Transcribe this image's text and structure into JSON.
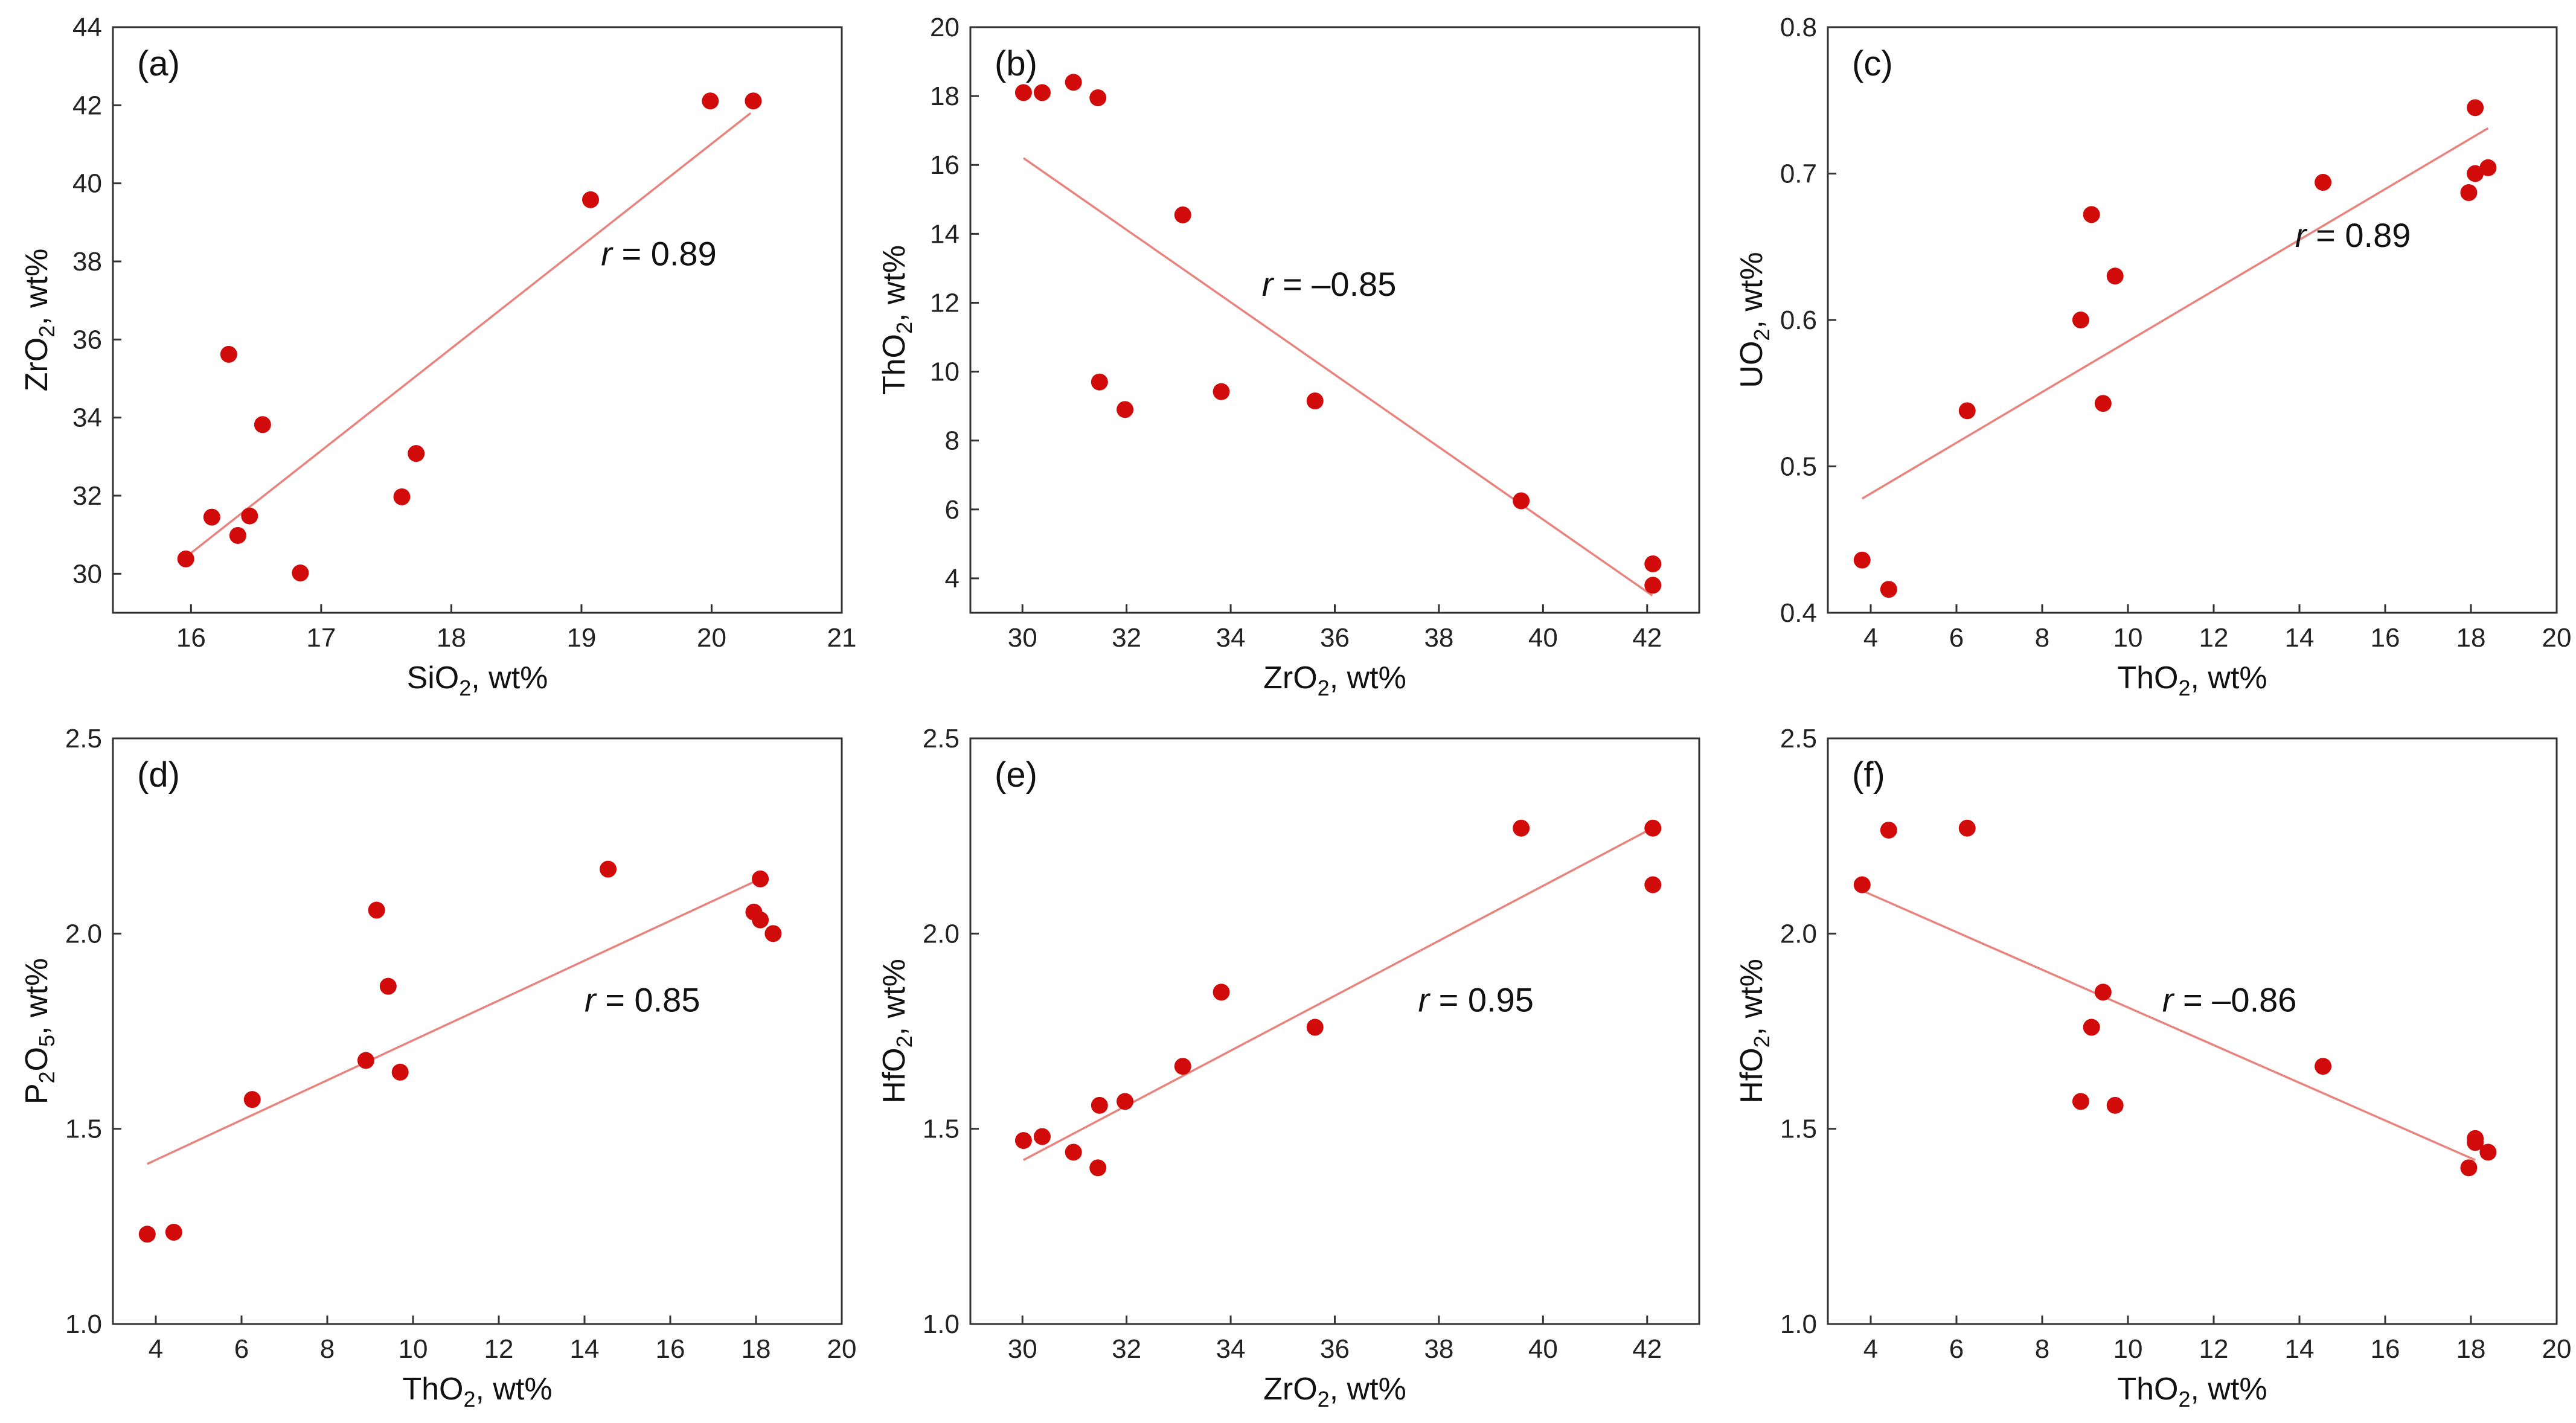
{
  "chart_data": [
    {
      "id": "a",
      "type": "scatter",
      "label": "(a)",
      "xlabel": {
        "base": "SiO",
        "sub": "2",
        "rest": ", wt%"
      },
      "ylabel": {
        "base": "ZrO",
        "sub": "2",
        "rest": ", wt%"
      },
      "xlim": [
        15.4,
        21
      ],
      "ylim": [
        29,
        44
      ],
      "xticks": [
        16,
        17,
        18,
        19,
        20,
        21
      ],
      "yticks": [
        30,
        32,
        34,
        36,
        38,
        40,
        42,
        44
      ],
      "tick_decimals": 0,
      "r_value": "= 0.89",
      "r_pos": [
        19.15,
        37.9
      ],
      "fit": [
        [
          15.95,
          30.4
        ],
        [
          20.3,
          41.8
        ]
      ],
      "points": [
        [
          15.96,
          30.38
        ],
        [
          16.16,
          31.45
        ],
        [
          16.29,
          35.62
        ],
        [
          16.36,
          30.98
        ],
        [
          16.45,
          31.48
        ],
        [
          16.55,
          33.82
        ],
        [
          16.84,
          30.02
        ],
        [
          17.62,
          31.97
        ],
        [
          17.73,
          33.08
        ],
        [
          19.07,
          39.58
        ],
        [
          19.99,
          42.11
        ],
        [
          20.32,
          42.11
        ]
      ]
    },
    {
      "id": "b",
      "type": "scatter",
      "label": "(b)",
      "xlabel": {
        "base": "ZrO",
        "sub": "2",
        "rest": ", wt%"
      },
      "ylabel": {
        "base": "ThO",
        "sub": "2",
        "rest": ", wt%"
      },
      "xlim": [
        29,
        43
      ],
      "ylim": [
        3,
        20
      ],
      "xticks": [
        30,
        32,
        34,
        36,
        38,
        40,
        42
      ],
      "yticks": [
        4,
        6,
        8,
        10,
        12,
        14,
        16,
        18,
        20
      ],
      "tick_decimals": 0,
      "r_value": "= –0.85",
      "r_pos": [
        34.6,
        12.2
      ],
      "fit": [
        [
          30.02,
          16.2
        ],
        [
          42.1,
          3.5
        ]
      ],
      "points": [
        [
          30.02,
          18.1
        ],
        [
          30.38,
          18.1
        ],
        [
          30.98,
          18.4
        ],
        [
          31.45,
          17.95
        ],
        [
          31.48,
          9.7
        ],
        [
          31.97,
          8.9
        ],
        [
          33.08,
          14.55
        ],
        [
          33.82,
          9.42
        ],
        [
          35.62,
          9.15
        ],
        [
          39.58,
          6.25
        ],
        [
          42.11,
          4.42
        ],
        [
          42.11,
          3.8
        ]
      ]
    },
    {
      "id": "c",
      "type": "scatter",
      "label": "(c)",
      "xlabel": {
        "base": "ThO",
        "sub": "2",
        "rest": ", wt%"
      },
      "ylabel": {
        "base": "UO",
        "sub": "2",
        "rest": ", wt%"
      },
      "xlim": [
        3,
        20
      ],
      "ylim": [
        0.4,
        0.8
      ],
      "xticks": [
        4,
        6,
        8,
        10,
        12,
        14,
        16,
        18,
        20
      ],
      "yticks": [
        0.4,
        0.5,
        0.6,
        0.7,
        0.8
      ],
      "tick_decimals": 1,
      "r_value": "= 0.89",
      "r_pos": [
        13.9,
        0.65
      ],
      "fit": [
        [
          3.8,
          0.478
        ],
        [
          18.4,
          0.731
        ]
      ],
      "points": [
        [
          3.8,
          0.436
        ],
        [
          4.42,
          0.416
        ],
        [
          6.25,
          0.538
        ],
        [
          8.9,
          0.6
        ],
        [
          9.15,
          0.672
        ],
        [
          9.42,
          0.543
        ],
        [
          9.7,
          0.63
        ],
        [
          14.55,
          0.694
        ],
        [
          17.95,
          0.687
        ],
        [
          18.1,
          0.745
        ],
        [
          18.1,
          0.7
        ],
        [
          18.4,
          0.704
        ]
      ]
    },
    {
      "id": "d",
      "type": "scatter",
      "label": "(d)",
      "xlabel": {
        "base": "ThO",
        "sub": "2",
        "rest": ", wt%"
      },
      "ylabel": {
        "base": "P",
        "sub": "2",
        "rest": "O",
        "sub2": "5",
        "rest2": ", wt%"
      },
      "xlim": [
        3,
        20
      ],
      "ylim": [
        1.0,
        2.5
      ],
      "xticks": [
        4,
        6,
        8,
        10,
        12,
        14,
        16,
        18,
        20
      ],
      "yticks": [
        1.0,
        1.5,
        2.0,
        2.5
      ],
      "tick_decimals": 1,
      "r_value": "= 0.85",
      "r_pos": [
        14.0,
        1.8
      ],
      "fit": [
        [
          3.8,
          1.41
        ],
        [
          18.1,
          2.14
        ]
      ],
      "points": [
        [
          3.8,
          1.23
        ],
        [
          4.42,
          1.235
        ],
        [
          6.25,
          1.575
        ],
        [
          8.9,
          1.675
        ],
        [
          9.15,
          2.06
        ],
        [
          9.42,
          1.865
        ],
        [
          9.7,
          1.645
        ],
        [
          14.55,
          2.165
        ],
        [
          17.95,
          2.055
        ],
        [
          18.1,
          2.14
        ],
        [
          18.1,
          2.035
        ],
        [
          18.4,
          2.0
        ]
      ]
    },
    {
      "id": "e",
      "type": "scatter",
      "label": "(e)",
      "xlabel": {
        "base": "ZrO",
        "sub": "2",
        "rest": ", wt%"
      },
      "ylabel": {
        "base": "HfO",
        "sub": "2",
        "rest": ", wt%"
      },
      "xlim": [
        29,
        43
      ],
      "ylim": [
        1.0,
        2.5
      ],
      "xticks": [
        30,
        32,
        34,
        36,
        38,
        40,
        42
      ],
      "yticks": [
        1.0,
        1.5,
        2.0,
        2.5
      ],
      "tick_decimals": 1,
      "r_value": "= 0.95",
      "r_pos": [
        37.6,
        1.8
      ],
      "fit": [
        [
          30.02,
          1.42
        ],
        [
          42.1,
          2.27
        ]
      ],
      "points": [
        [
          30.02,
          1.47
        ],
        [
          30.38,
          1.48
        ],
        [
          30.98,
          1.44
        ],
        [
          31.45,
          1.4
        ],
        [
          31.48,
          1.56
        ],
        [
          31.97,
          1.57
        ],
        [
          33.08,
          1.66
        ],
        [
          33.82,
          1.85
        ],
        [
          35.62,
          1.76
        ],
        [
          39.58,
          2.27
        ],
        [
          42.11,
          2.27
        ],
        [
          42.11,
          2.125
        ]
      ]
    },
    {
      "id": "f",
      "type": "scatter",
      "label": "(f)",
      "xlabel": {
        "base": "ThO",
        "sub": "2",
        "rest": ", wt%"
      },
      "ylabel": {
        "base": "HfO",
        "sub": "2",
        "rest": ", wt%"
      },
      "xlim": [
        3,
        20
      ],
      "ylim": [
        1.0,
        2.5
      ],
      "xticks": [
        4,
        6,
        8,
        10,
        12,
        14,
        16,
        18,
        20
      ],
      "yticks": [
        1.0,
        1.5,
        2.0,
        2.5
      ],
      "tick_decimals": 1,
      "r_value": "= –0.86",
      "r_pos": [
        10.8,
        1.8
      ],
      "fit": [
        [
          3.8,
          2.11
        ],
        [
          18.1,
          1.42
        ]
      ],
      "points": [
        [
          3.8,
          2.125
        ],
        [
          4.42,
          2.265
        ],
        [
          6.25,
          2.27
        ],
        [
          8.9,
          1.57
        ],
        [
          9.15,
          1.76
        ],
        [
          9.42,
          1.85
        ],
        [
          9.7,
          1.56
        ],
        [
          14.55,
          1.66
        ],
        [
          17.95,
          1.4
        ],
        [
          18.1,
          1.475
        ],
        [
          18.1,
          1.465
        ],
        [
          18.4,
          1.44
        ]
      ]
    }
  ]
}
